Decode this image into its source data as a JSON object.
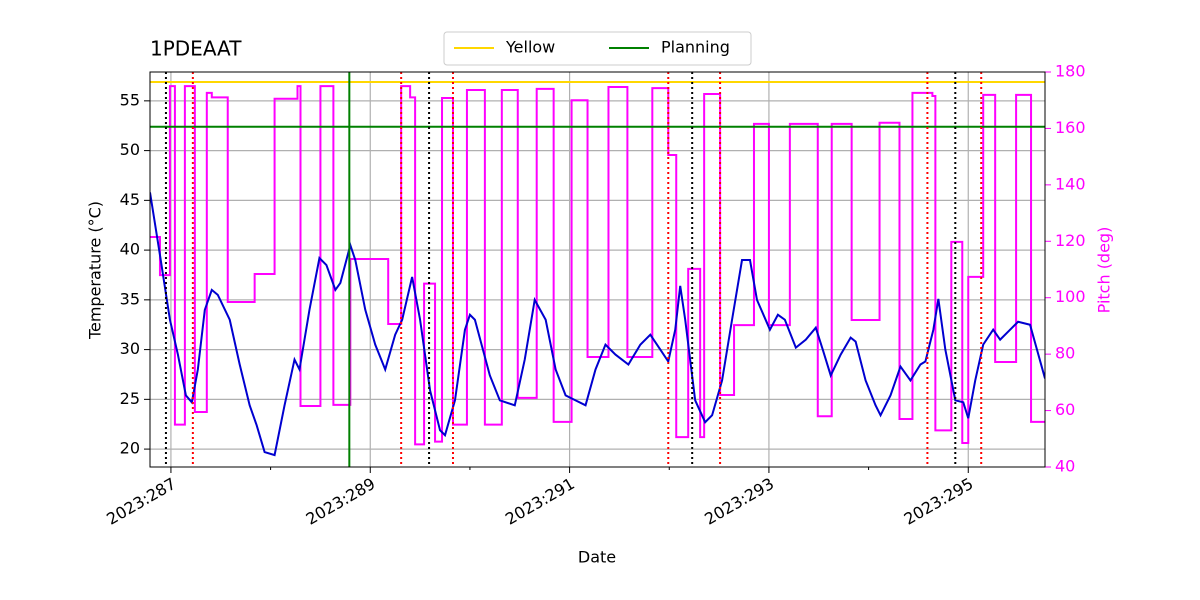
{
  "chart_data": {
    "type": "line",
    "title": "1PDEAAT",
    "xlabel": "Date",
    "ylabel": "Temperature (°C)",
    "y2label": "Pitch (deg)",
    "xlim": [
      286.79,
      295.77
    ],
    "xticks": [
      {
        "value": 287,
        "label": "2023:287"
      },
      {
        "value": 289,
        "label": "2023:289"
      },
      {
        "value": 291,
        "label": "2023:291"
      },
      {
        "value": 293,
        "label": "2023:293"
      },
      {
        "value": 295,
        "label": "2023:295"
      }
    ],
    "xminorticks": [
      288,
      290,
      292,
      294
    ],
    "ylim": [
      18.2,
      57.9
    ],
    "yticks": [
      20,
      25,
      30,
      35,
      40,
      45,
      50,
      55
    ],
    "y2lim": [
      40,
      180
    ],
    "y2ticks": [
      40,
      60,
      80,
      100,
      120,
      140,
      160,
      180
    ],
    "y2color": "magenta",
    "grid": true,
    "legend": "upper center",
    "hlines": [
      {
        "name": "Yellow",
        "color": "gold",
        "value": 56.9
      },
      {
        "name": "Planning",
        "color": "green",
        "value": 52.4
      }
    ],
    "vlines": [
      {
        "color": "green",
        "style": "solid",
        "values": [
          288.79
        ]
      },
      {
        "color": "black",
        "style": "dotted",
        "values": [
          286.95,
          289.59,
          292.23,
          294.87
        ]
      },
      {
        "color": "red",
        "style": "dotted",
        "values": [
          287.22,
          289.31,
          289.83,
          291.99,
          292.51,
          294.59,
          295.13
        ]
      }
    ],
    "series": [
      {
        "color": "magenta",
        "axis": "y2",
        "drawstyle": "steps-post",
        "x": [
          286.79,
          286.89,
          286.99,
          287.04,
          287.14,
          287.24,
          287.36,
          287.41,
          287.57,
          287.84,
          288.04,
          288.27,
          288.3,
          288.5,
          288.63,
          288.8,
          289.18,
          289.31,
          289.4,
          289.45,
          289.54,
          289.65,
          289.72,
          289.83,
          289.97,
          290.15,
          290.32,
          290.48,
          290.67,
          290.84,
          291.02,
          291.18,
          291.39,
          291.58,
          291.83,
          291.99,
          292.07,
          292.19,
          292.31,
          292.35,
          292.51,
          292.65,
          292.85,
          293.0,
          293.21,
          293.49,
          293.63,
          293.83,
          294.11,
          294.31,
          294.44,
          294.64,
          294.67,
          294.83,
          294.94,
          295.0,
          295.15,
          295.27,
          295.48,
          295.63,
          295.77
        ],
        "values": [
          121.5,
          108,
          175,
          55,
          175,
          59.5,
          172.6,
          171,
          98.5,
          108.4,
          170.5,
          175,
          61.6,
          175,
          62,
          113.7,
          90.7,
          175,
          171,
          48,
          105,
          49,
          170.8,
          55,
          173.6,
          55,
          173.6,
          64.5,
          174,
          56,
          170,
          79,
          174.7,
          79,
          174.3,
          150.6,
          50.6,
          110.2,
          50.6,
          172.2,
          65.5,
          90.3,
          161.6,
          90.3,
          161.6,
          58,
          161.6,
          92.1,
          162,
          57,
          172.6,
          171.5,
          53,
          119.8,
          48.5,
          107.4,
          171.9,
          77.2,
          171.9,
          56,
          56
        ]
      },
      {
        "color": "#0000d0",
        "x": [
          286.79,
          286.89,
          286.99,
          287.07,
          287.15,
          287.21,
          287.27,
          287.34,
          287.41,
          287.47,
          287.59,
          287.69,
          287.79,
          287.86,
          287.94,
          288.04,
          288.14,
          288.24,
          288.29,
          288.39,
          288.49,
          288.56,
          288.65,
          288.7,
          288.8,
          288.85,
          288.95,
          289.05,
          289.15,
          289.25,
          289.32,
          289.42,
          289.5,
          289.6,
          289.7,
          289.75,
          289.85,
          289.95,
          290.0,
          290.05,
          290.2,
          290.3,
          290.45,
          290.55,
          290.65,
          290.76,
          290.86,
          290.96,
          291.06,
          291.16,
          291.26,
          291.36,
          291.46,
          291.59,
          291.71,
          291.81,
          291.91,
          291.99,
          292.06,
          292.11,
          292.16,
          292.26,
          292.36,
          292.43,
          292.53,
          292.63,
          292.73,
          292.81,
          292.88,
          293.01,
          293.09,
          293.16,
          293.27,
          293.37,
          293.47,
          293.54,
          293.62,
          293.72,
          293.82,
          293.87,
          293.97,
          294.07,
          294.12,
          294.22,
          294.32,
          294.42,
          294.52,
          294.57,
          294.65,
          294.7,
          294.77,
          294.87,
          294.95,
          295.0,
          295.07,
          295.15,
          295.25,
          295.32,
          295.42,
          295.5,
          295.62,
          295.77
        ],
        "values": [
          45.8,
          39.5,
          33.0,
          29.5,
          25.4,
          24.7,
          28.0,
          34.0,
          36.0,
          35.5,
          33.0,
          28.5,
          24.4,
          22.4,
          19.7,
          19.4,
          24.4,
          29.0,
          28.0,
          34.0,
          39.2,
          38.5,
          36.0,
          36.7,
          40.5,
          39.0,
          34.0,
          30.5,
          28.0,
          31.5,
          33.0,
          37.3,
          33.0,
          25.9,
          21.9,
          21.4,
          24.9,
          32.0,
          33.5,
          33.0,
          27.4,
          24.9,
          24.4,
          29.0,
          35.0,
          33.0,
          28.0,
          25.4,
          24.9,
          24.4,
          28.0,
          30.5,
          29.5,
          28.5,
          30.5,
          31.5,
          30.0,
          28.8,
          32.0,
          36.4,
          33.0,
          24.9,
          22.7,
          23.4,
          26.9,
          33.0,
          39.0,
          39.0,
          35.0,
          32.0,
          33.5,
          33.0,
          30.2,
          31.0,
          32.2,
          30.0,
          27.4,
          29.5,
          31.2,
          30.8,
          26.9,
          24.4,
          23.4,
          25.4,
          28.3,
          26.9,
          28.5,
          28.8,
          32.0,
          35.1,
          30.0,
          24.9,
          24.7,
          23.1,
          26.9,
          30.5,
          32.0,
          31.0,
          32.0,
          32.8,
          32.5,
          27.1
        ]
      }
    ]
  }
}
